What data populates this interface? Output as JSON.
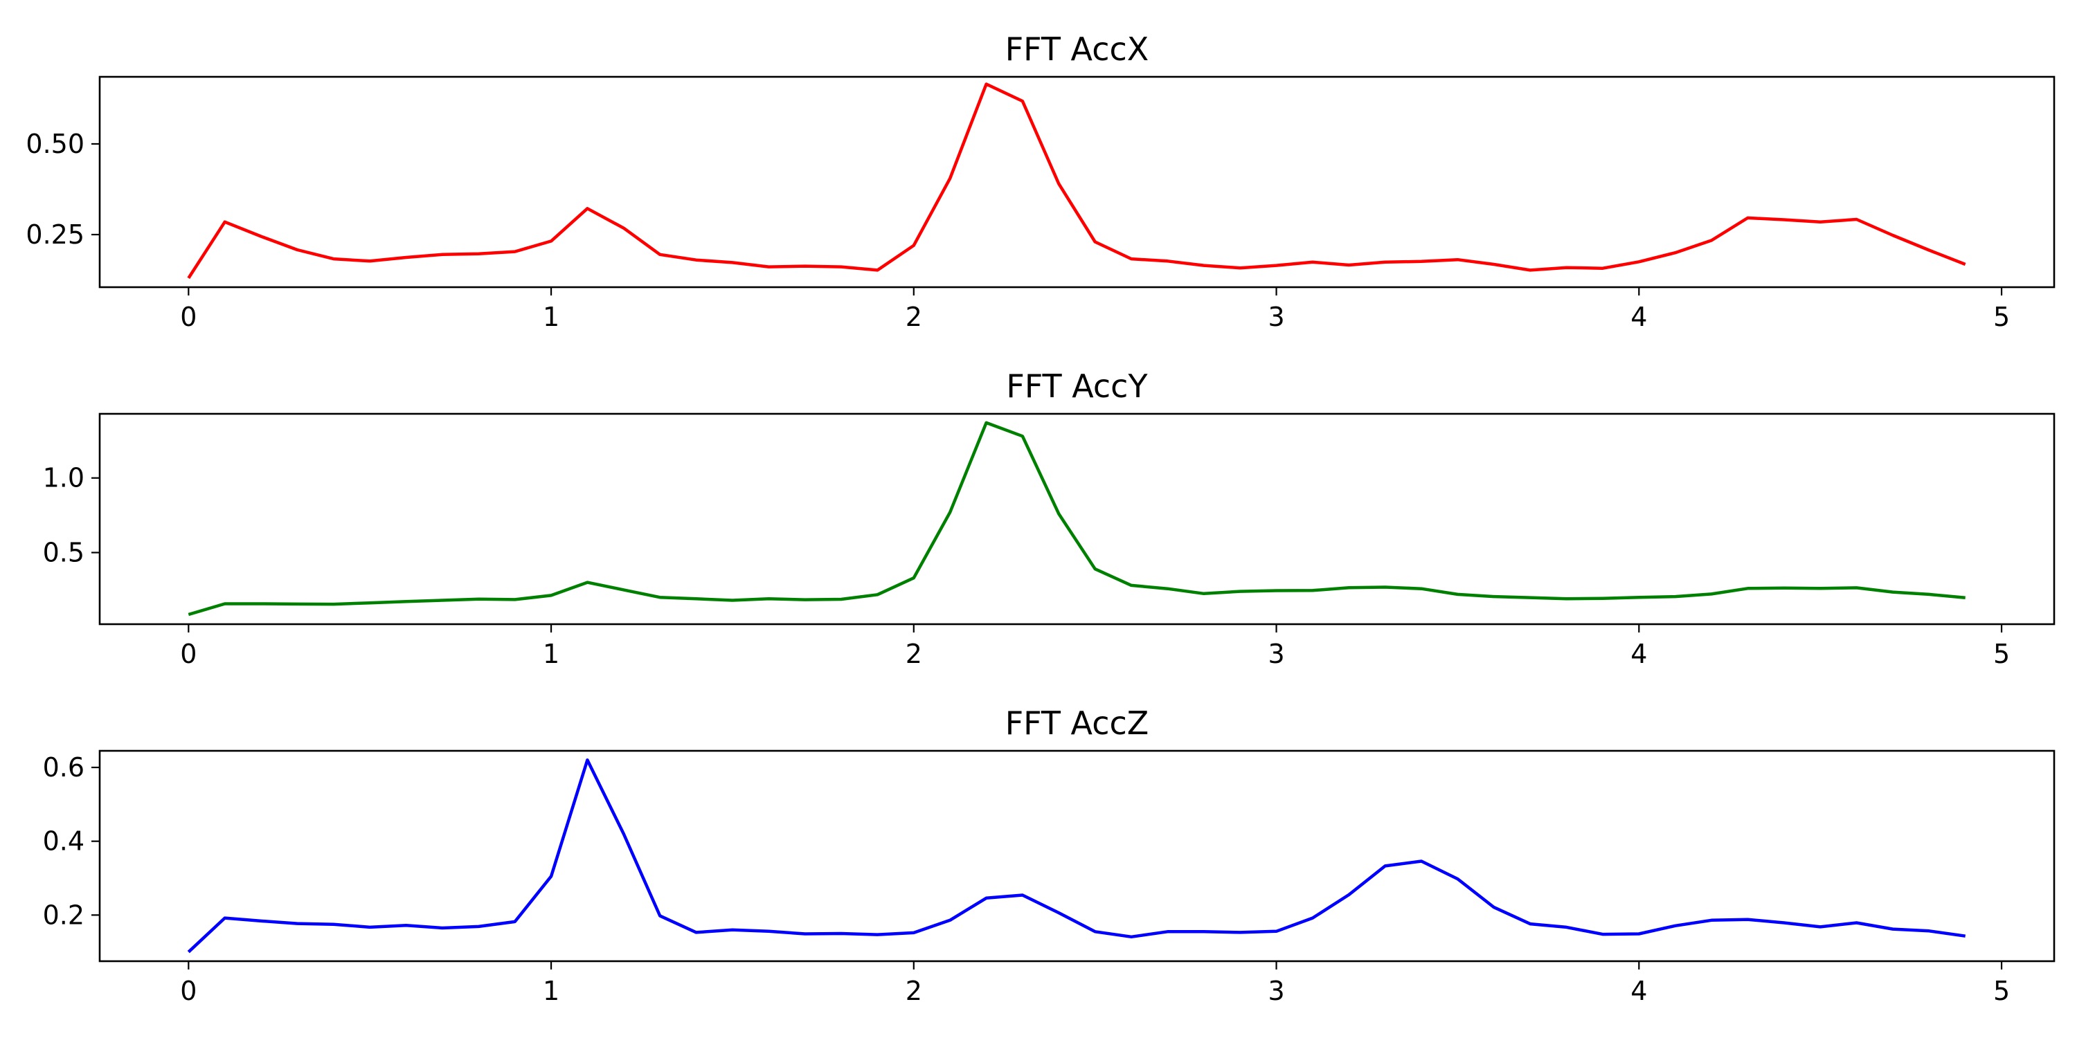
{
  "chart_data": [
    {
      "type": "line",
      "title": "FFT AccX",
      "xlabel": "",
      "ylabel": "",
      "xlim": [
        -0.245,
        5.145
      ],
      "ylim": [
        0.105,
        0.685
      ],
      "xticks": [
        0,
        1,
        2,
        3,
        4,
        5
      ],
      "xtick_labels": [
        "0",
        "1",
        "2",
        "3",
        "4",
        "5"
      ],
      "yticks": [
        0.25,
        0.5
      ],
      "ytick_labels": [
        "0.25",
        "0.50"
      ],
      "grid": false,
      "series": [
        {
          "color": "#ff0000",
          "x": [
            0,
            0.1,
            0.2,
            0.3,
            0.4,
            0.5,
            0.6,
            0.7,
            0.8,
            0.9,
            1.0,
            1.1,
            1.2,
            1.3,
            1.4,
            1.5,
            1.6,
            1.7,
            1.8,
            1.9,
            2.0,
            2.1,
            2.2,
            2.3,
            2.4,
            2.5,
            2.6,
            2.7,
            2.8,
            2.9,
            3.0,
            3.1,
            3.2,
            3.3,
            3.4,
            3.5,
            3.6,
            3.7,
            3.8,
            3.9,
            4.0,
            4.1,
            4.2,
            4.3,
            4.4,
            4.5,
            4.6,
            4.7,
            4.8,
            4.9
          ],
          "values": [
            0.13,
            0.285,
            0.245,
            0.208,
            0.183,
            0.177,
            0.187,
            0.195,
            0.197,
            0.203,
            0.232,
            0.322,
            0.268,
            0.195,
            0.18,
            0.173,
            0.161,
            0.163,
            0.161,
            0.152,
            0.22,
            0.405,
            0.665,
            0.618,
            0.39,
            0.23,
            0.183,
            0.177,
            0.165,
            0.158,
            0.165,
            0.174,
            0.166,
            0.174,
            0.176,
            0.181,
            0.168,
            0.152,
            0.159,
            0.157,
            0.175,
            0.2,
            0.234,
            0.296,
            0.291,
            0.285,
            0.292,
            0.248,
            0.207,
            0.168
          ]
        }
      ]
    },
    {
      "type": "line",
      "title": "FFT AccY",
      "xlabel": "",
      "ylabel": "",
      "xlim": [
        -0.245,
        5.145
      ],
      "ylim": [
        0.02,
        1.43
      ],
      "xticks": [
        0,
        1,
        2,
        3,
        4,
        5
      ],
      "xtick_labels": [
        "0",
        "1",
        "2",
        "3",
        "4",
        "5"
      ],
      "yticks": [
        0.5,
        1.0
      ],
      "ytick_labels": [
        "0.5",
        "1.0"
      ],
      "grid": false,
      "series": [
        {
          "color": "#008000",
          "x": [
            0,
            0.1,
            0.2,
            0.3,
            0.4,
            0.5,
            0.6,
            0.7,
            0.8,
            0.9,
            1.0,
            1.1,
            1.2,
            1.3,
            1.4,
            1.5,
            1.6,
            1.7,
            1.8,
            1.9,
            2.0,
            2.1,
            2.2,
            2.3,
            2.4,
            2.5,
            2.6,
            2.7,
            2.8,
            2.9,
            3.0,
            3.1,
            3.2,
            3.3,
            3.4,
            3.5,
            3.6,
            3.7,
            3.8,
            3.9,
            4.0,
            4.1,
            4.2,
            4.3,
            4.4,
            4.5,
            4.6,
            4.7,
            4.8,
            4.9
          ],
          "values": [
            0.085,
            0.157,
            0.157,
            0.155,
            0.154,
            0.163,
            0.172,
            0.18,
            0.188,
            0.185,
            0.213,
            0.3,
            0.25,
            0.2,
            0.19,
            0.18,
            0.19,
            0.184,
            0.187,
            0.218,
            0.33,
            0.77,
            1.37,
            1.28,
            0.76,
            0.39,
            0.28,
            0.258,
            0.225,
            0.24,
            0.245,
            0.246,
            0.265,
            0.268,
            0.258,
            0.22,
            0.205,
            0.198,
            0.19,
            0.193,
            0.2,
            0.205,
            0.222,
            0.26,
            0.262,
            0.26,
            0.264,
            0.235,
            0.22,
            0.197
          ]
        }
      ]
    },
    {
      "type": "line",
      "title": "FFT AccZ",
      "xlabel": "",
      "ylabel": "",
      "xlim": [
        -0.245,
        5.145
      ],
      "ylim": [
        0.075,
        0.645
      ],
      "xticks": [
        0,
        1,
        2,
        3,
        4,
        5
      ],
      "xtick_labels": [
        "0",
        "1",
        "2",
        "3",
        "4",
        "5"
      ],
      "yticks": [
        0.2,
        0.4,
        0.6
      ],
      "ytick_labels": [
        "0.2",
        "0.4",
        "0.6"
      ],
      "grid": false,
      "series": [
        {
          "color": "#0000ff",
          "x": [
            0,
            0.1,
            0.2,
            0.3,
            0.4,
            0.5,
            0.6,
            0.7,
            0.8,
            0.9,
            1.0,
            1.1,
            1.2,
            1.3,
            1.4,
            1.5,
            1.6,
            1.7,
            1.8,
            1.9,
            2.0,
            2.1,
            2.2,
            2.3,
            2.4,
            2.5,
            2.6,
            2.7,
            2.8,
            2.9,
            3.0,
            3.1,
            3.2,
            3.3,
            3.4,
            3.5,
            3.6,
            3.7,
            3.8,
            3.9,
            4.0,
            4.1,
            4.2,
            4.3,
            4.4,
            4.5,
            4.6,
            4.7,
            4.8,
            4.9
          ],
          "values": [
            0.1,
            0.192,
            0.184,
            0.177,
            0.175,
            0.167,
            0.172,
            0.165,
            0.169,
            0.182,
            0.305,
            0.62,
            0.42,
            0.198,
            0.153,
            0.16,
            0.156,
            0.149,
            0.15,
            0.147,
            0.152,
            0.186,
            0.246,
            0.254,
            0.206,
            0.155,
            0.141,
            0.155,
            0.155,
            0.153,
            0.156,
            0.192,
            0.255,
            0.333,
            0.346,
            0.298,
            0.221,
            0.176,
            0.167,
            0.148,
            0.149,
            0.171,
            0.186,
            0.188,
            0.179,
            0.168,
            0.179,
            0.162,
            0.157,
            0.143
          ]
        }
      ]
    }
  ]
}
